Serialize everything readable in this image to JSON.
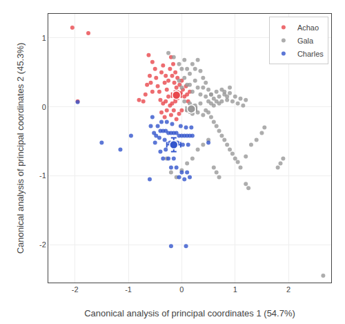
{
  "chart_data": {
    "type": "scatter",
    "xlabel": "Canonical analysis of principal coordinates 1 (54.7%)",
    "ylabel": "Canonical analysis of principal coordinates 2 (45.3%)",
    "xlim": [
      -2.5,
      2.8
    ],
    "ylim": [
      -2.55,
      1.35
    ],
    "xticks": [
      -2,
      -1,
      0,
      1,
      2
    ],
    "yticks": [
      -2,
      -1,
      0,
      1
    ],
    "grid": true,
    "legend": "upper right",
    "series": [
      {
        "name": "Achao",
        "color": "#E8474C",
        "x": [
          -2.05,
          -1.75,
          -0.62,
          -0.55,
          -0.5,
          -0.48,
          -0.45,
          -0.42,
          -0.38,
          -0.35,
          -0.32,
          -0.3,
          -0.28,
          -0.25,
          -0.22,
          -0.2,
          -0.18,
          -0.16,
          -0.14,
          -0.12,
          -0.1,
          -0.08,
          -0.06,
          -0.04,
          -0.02,
          0.0,
          0.02,
          0.05,
          0.08,
          0.1,
          0.12,
          0.15,
          -0.4,
          -0.38,
          -0.35,
          -0.32,
          -0.3,
          -0.28,
          -0.25,
          -0.22,
          -0.2,
          -0.18,
          -0.15,
          -0.12,
          -0.68,
          -0.72,
          -0.65,
          -0.6,
          -0.55,
          -0.58,
          -1.95,
          -0.8,
          -0.1,
          -0.05,
          0.0
        ],
        "values": [
          1.15,
          1.07,
          0.75,
          0.65,
          0.55,
          0.42,
          0.3,
          0.22,
          0.5,
          0.6,
          0.35,
          0.45,
          0.25,
          0.38,
          0.55,
          0.72,
          0.45,
          0.62,
          0.35,
          0.5,
          0.28,
          0.42,
          0.18,
          0.32,
          0.2,
          0.38,
          0.25,
          0.15,
          0.3,
          0.18,
          0.08,
          0.22,
          0.1,
          -0.08,
          0.05,
          -0.15,
          0.08,
          -0.05,
          0.15,
          0.02,
          -0.12,
          0.05,
          -0.05,
          0.08,
          0.18,
          0.08,
          0.32,
          0.45,
          0.22,
          0.35,
          0.08,
          0.1,
          -0.18,
          -0.1,
          -0.05
        ],
        "mean_x": -0.1,
        "mean_y": 0.17,
        "se_x": 0.09,
        "se_y": 0.06
      },
      {
        "name": "Gala",
        "color": "#999999",
        "x": [
          -0.25,
          -0.15,
          -0.05,
          0.0,
          0.05,
          0.1,
          0.15,
          0.2,
          0.25,
          0.3,
          0.35,
          0.4,
          0.45,
          0.5,
          0.55,
          0.6,
          0.65,
          0.7,
          0.75,
          0.8,
          0.85,
          0.9,
          0.95,
          1.0,
          1.05,
          1.1,
          1.15,
          1.2,
          0.05,
          0.1,
          0.15,
          0.2,
          0.25,
          0.3,
          0.35,
          0.4,
          0.45,
          0.5,
          0.55,
          0.6,
          0.65,
          0.7,
          0.75,
          0.8,
          0.85,
          0.9,
          0.95,
          1.0,
          1.05,
          1.1,
          0.15,
          0.2,
          0.25,
          0.3,
          0.35,
          0.4,
          0.45,
          0.5,
          0.55,
          0.6,
          0.65,
          0.7,
          1.2,
          1.3,
          1.4,
          1.5,
          1.55,
          0.8,
          0.85,
          0.9,
          2.65,
          1.8,
          1.85,
          1.9,
          -0.28,
          -0.2,
          -0.1,
          0.0,
          0.1,
          0.2,
          0.3,
          0.4,
          0.5,
          1.2,
          1.25,
          -0.05,
          0.0,
          0.05,
          0.1,
          0.55,
          0.6,
          0.65,
          0.7,
          0.75
        ],
        "values": [
          0.78,
          0.72,
          0.62,
          0.55,
          0.68,
          0.55,
          0.48,
          0.62,
          0.55,
          0.68,
          0.52,
          0.42,
          0.35,
          0.25,
          0.18,
          0.12,
          0.22,
          0.15,
          0.25,
          0.18,
          0.1,
          0.2,
          0.08,
          0.15,
          0.05,
          0.12,
          0.02,
          0.1,
          0.08,
          -0.05,
          0.05,
          -0.1,
          0.02,
          -0.08,
          0.05,
          -0.12,
          -0.05,
          -0.08,
          -0.15,
          -0.22,
          -0.28,
          -0.35,
          -0.42,
          -0.48,
          -0.55,
          -0.62,
          -0.68,
          -0.75,
          -0.8,
          -0.88,
          0.32,
          0.22,
          0.38,
          0.28,
          0.18,
          0.28,
          0.15,
          0.08,
          0.18,
          -0.88,
          -0.95,
          -1.02,
          -0.72,
          -0.55,
          -0.48,
          -0.38,
          -0.3,
          0.22,
          0.15,
          0.28,
          -2.45,
          -0.88,
          -0.82,
          -0.75,
          -0.75,
          -0.95,
          -1.02,
          -0.92,
          -0.82,
          -0.75,
          -0.62,
          -0.55,
          -0.48,
          -1.12,
          -1.18,
          0.38,
          0.28,
          0.42,
          0.32,
          0.05,
          0.02,
          0.08,
          0.05,
          0.08
        ],
        "mean_x": 0.18,
        "mean_y": -0.03,
        "se_x": 0.1,
        "se_y": 0.06
      },
      {
        "name": "Charles",
        "color": "#3355CC",
        "x": [
          -1.95,
          -1.5,
          -1.15,
          -0.95,
          -0.58,
          -0.55,
          -0.52,
          -0.5,
          -0.48,
          -0.45,
          -0.42,
          -0.4,
          -0.38,
          -0.35,
          -0.32,
          -0.3,
          -0.28,
          -0.25,
          -0.22,
          -0.2,
          -0.18,
          -0.15,
          -0.12,
          -0.1,
          -0.08,
          -0.05,
          -0.02,
          0.0,
          0.02,
          0.05,
          0.08,
          0.1,
          0.12,
          0.15,
          0.18,
          0.2,
          0.5,
          -0.4,
          -0.35,
          -0.3,
          -0.25,
          -0.2,
          -0.15,
          -0.1,
          -0.05,
          0.0,
          0.05,
          0.1,
          0.15,
          -0.6,
          -0.2,
          0.08
        ],
        "values": [
          0.07,
          -0.52,
          -0.62,
          -0.42,
          -0.28,
          -0.15,
          -0.38,
          -0.52,
          -0.42,
          -0.28,
          -0.45,
          -0.35,
          -0.22,
          -0.35,
          -0.48,
          -0.35,
          -0.22,
          -0.38,
          -0.52,
          -0.38,
          -0.25,
          -0.38,
          -0.52,
          -0.38,
          -0.52,
          -0.42,
          -0.28,
          -0.42,
          -0.55,
          -0.42,
          -0.3,
          -0.42,
          -0.55,
          -0.42,
          -0.3,
          -0.42,
          -0.52,
          -0.65,
          -0.75,
          -0.62,
          -0.75,
          -0.88,
          -0.75,
          -0.88,
          -1.02,
          -0.95,
          -1.05,
          -0.95,
          -1.02,
          -1.05,
          -2.02,
          -2.02
        ],
        "mean_x": -0.15,
        "mean_y": -0.55,
        "se_x": 0.13,
        "se_y": 0.1
      }
    ]
  }
}
